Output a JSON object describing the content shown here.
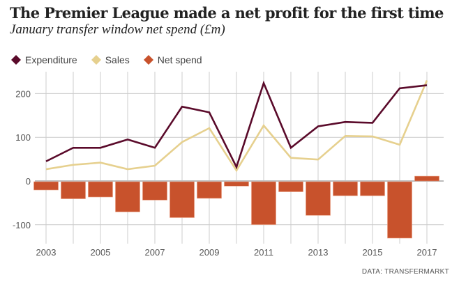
{
  "title": "The Premier League made a net profit for the first time",
  "subtitle": "January transfer window net spend (£m)",
  "source": "DATA: TRANSFERMARKT",
  "colors": {
    "expenditure": "#5a0a2a",
    "sales": "#e6d08e",
    "net": "#c8522c",
    "grid": "#cccccc"
  },
  "chart_data": {
    "type": "line",
    "title": "January transfer window net spend (£m)",
    "xlabel": "",
    "ylabel": "£m",
    "x": [
      2003,
      2004,
      2005,
      2006,
      2007,
      2008,
      2009,
      2010,
      2011,
      2012,
      2013,
      2014,
      2015,
      2016,
      2017
    ],
    "xticks": [
      "2003",
      "2005",
      "2007",
      "2009",
      "2011",
      "2013",
      "2015",
      "2017"
    ],
    "yticks": [
      "200",
      "100",
      "0",
      "-100"
    ],
    "ylim": [
      -140,
      250
    ],
    "grid": true,
    "legend": "top-left",
    "series": [
      {
        "name": "Expenditure",
        "type": "line",
        "values": [
          45,
          76,
          76,
          95,
          76,
          170,
          157,
          32,
          224,
          76,
          125,
          135,
          133,
          212,
          219
        ]
      },
      {
        "name": "Sales",
        "type": "line",
        "values": [
          27,
          37,
          42,
          27,
          35,
          89,
          121,
          24,
          127,
          53,
          49,
          103,
          102,
          83,
          230
        ]
      },
      {
        "name": "Net spend",
        "type": "bar",
        "values": [
          -19,
          -39,
          -35,
          -69,
          -42,
          -82,
          -38,
          -10,
          -98,
          -23,
          -77,
          -32,
          -32,
          -129,
          11
        ]
      }
    ]
  }
}
